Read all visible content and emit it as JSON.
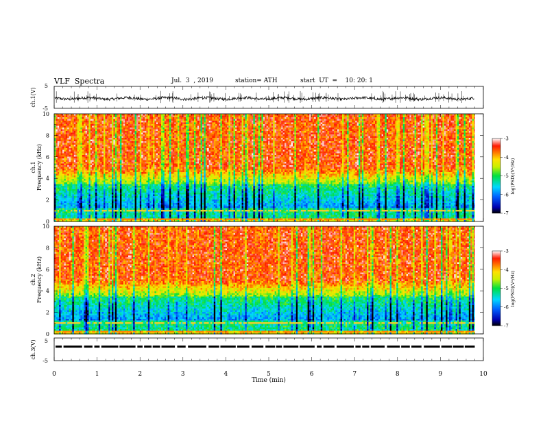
{
  "header": {
    "title": "VLF  Spectra",
    "date": "Jul.  3  , 2019",
    "station": "station= ATH",
    "start": "start  UT  =    10: 20: 1"
  },
  "chart_data": [
    {
      "type": "line",
      "panel": "ch1-waveform",
      "ylabel": "ch.1(V)",
      "yticks": [
        "5",
        "-5"
      ],
      "ylim": [
        -5,
        5
      ],
      "xlim": [
        0,
        10
      ],
      "data_end_min": 9.8,
      "series": [
        {
          "values_description": "noise waveform around -0.5 V",
          "mean": -0.5,
          "amplitude": 1.2
        }
      ]
    },
    {
      "type": "heatmap",
      "panel": "ch1-spectrogram",
      "ylabel_top": "ch.1",
      "ylabel": "Frequency  (kHz)",
      "yticks": [
        "10",
        "8",
        "6",
        "4",
        "2",
        "0"
      ],
      "ylim": [
        0,
        10
      ],
      "xlim": [
        0,
        10
      ],
      "data_end_min": 9.8,
      "colorbar": {
        "label": "log(PSD)(V²/Hz)",
        "ticks": [
          "-3",
          "-4",
          "-5",
          "-6",
          "-7"
        ],
        "range": [
          -7,
          -3
        ]
      }
    },
    {
      "type": "heatmap",
      "panel": "ch2-spectrogram",
      "ylabel_top": "ch.2",
      "ylabel": "Frequency  (kHz)",
      "yticks": [
        "10",
        "8",
        "6",
        "4",
        "2",
        "0"
      ],
      "ylim": [
        0,
        10
      ],
      "xlim": [
        0,
        10
      ],
      "data_end_min": 9.8,
      "colorbar": {
        "label": "log(PSD)(V²/Hz)",
        "ticks": [
          "-3",
          "-4",
          "-5",
          "-6",
          "-7"
        ],
        "range": [
          -7,
          -3
        ]
      }
    },
    {
      "type": "line",
      "panel": "ch3-waveform",
      "ylabel": "ch.3(V)",
      "yticks": [
        "5",
        "-5"
      ],
      "ylim": [
        -5,
        5
      ],
      "xlim": [
        0,
        10
      ],
      "data_end_min": 9.8,
      "series": [
        {
          "values_description": "near-constant dashed trace",
          "mean": 1.2
        }
      ]
    }
  ],
  "xaxis": {
    "label": "Time  (min)",
    "ticks": [
      "0",
      "1",
      "2",
      "3",
      "4",
      "5",
      "6",
      "7",
      "8",
      "9",
      "10"
    ]
  }
}
